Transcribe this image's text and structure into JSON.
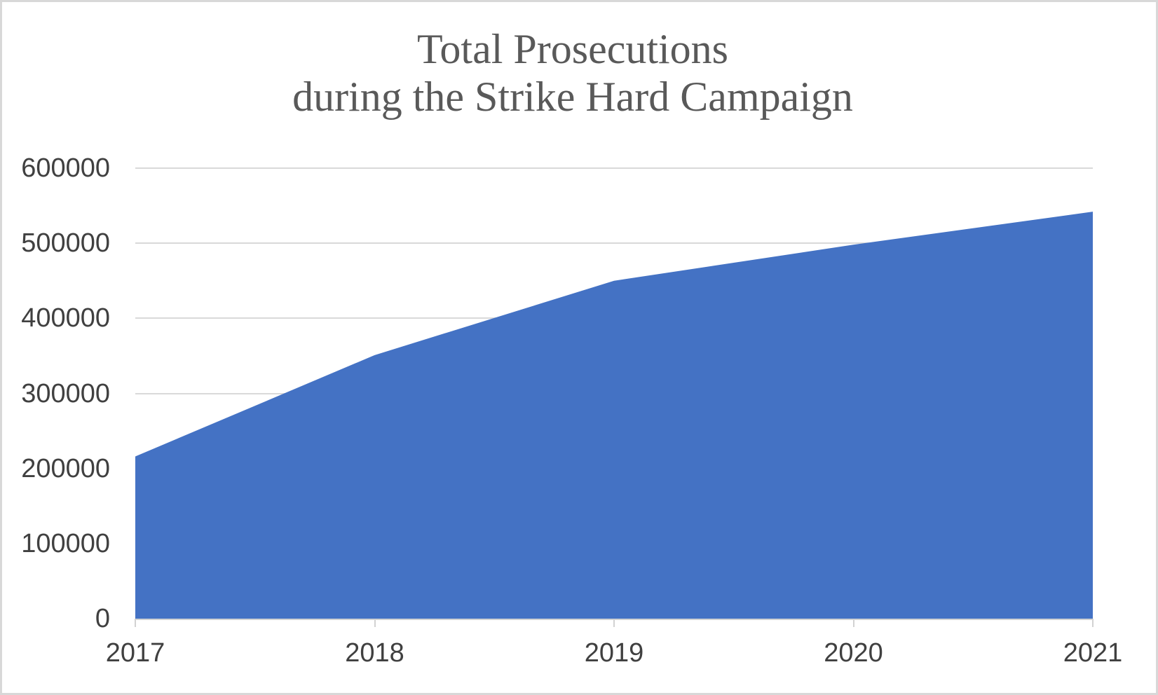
{
  "chart": {
    "title_line1": "Total Prosecutions",
    "title_line2": "during the Strike Hard Campaign",
    "colors": {
      "area_fill": "#4472C4",
      "gridline": "#D9D9D9",
      "axis_line": "#D2D2D2",
      "title_text": "#595959",
      "axis_label_text": "#404040",
      "frame_border": "#D8D8D8"
    }
  },
  "chart_data": {
    "type": "area",
    "title": "Total Prosecutions during the Strike Hard Campaign",
    "categories": [
      "2017",
      "2018",
      "2019",
      "2020",
      "2021"
    ],
    "series": [
      {
        "name": "Total Prosecutions",
        "values": [
          216000,
          351000,
          450000,
          498000,
          542000
        ]
      }
    ],
    "xlabel": "",
    "ylabel": "",
    "ylim": [
      0,
      600000
    ],
    "y_ticks": [
      0,
      100000,
      200000,
      300000,
      400000,
      500000,
      600000
    ],
    "y_tick_labels": [
      "0",
      "100000",
      "200000",
      "300000",
      "400000",
      "500000",
      "600000"
    ],
    "grid": true,
    "legend_position": "none",
    "area_color": "#4472C4"
  }
}
